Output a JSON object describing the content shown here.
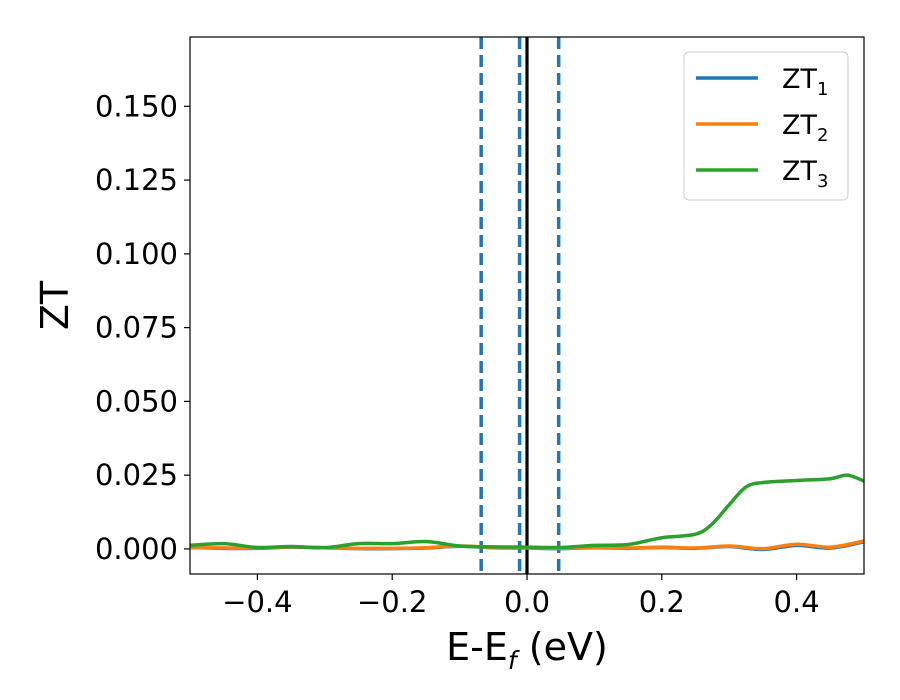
{
  "chart_data": {
    "type": "line",
    "title": "",
    "xlabel": {
      "main": "E-E",
      "sub": "f",
      "suffix": " (eV)"
    },
    "ylabel": "ZT",
    "xlim": [
      -0.5,
      0.5
    ],
    "ylim": [
      -0.0085,
      0.1735
    ],
    "xticks": [
      -0.4,
      -0.2,
      0.0,
      0.2,
      0.4
    ],
    "xtick_labels": [
      "−0.4",
      "−0.2",
      "0.0",
      "0.2",
      "0.4"
    ],
    "yticks": [
      0.0,
      0.025,
      0.05,
      0.075,
      0.1,
      0.125,
      0.15
    ],
    "ytick_labels": [
      "0.000",
      "0.025",
      "0.050",
      "0.075",
      "0.100",
      "0.125",
      "0.150"
    ],
    "grid": false,
    "legend_position": "top-right",
    "series": [
      {
        "name": "ZT",
        "name_sub": "1",
        "color": "#1f77b4",
        "x": [
          -0.5,
          -0.45,
          -0.4,
          -0.35,
          -0.3,
          -0.25,
          -0.2,
          -0.15,
          -0.1,
          -0.05,
          0.0,
          0.05,
          0.1,
          0.15,
          0.2,
          0.25,
          0.3,
          0.35,
          0.4,
          0.45,
          0.5
        ],
        "y": [
          0.0005,
          0.0002,
          0.0002,
          0.0006,
          0.0004,
          0.0001,
          0.0001,
          0.0003,
          0.0009,
          0.0004,
          0.0003,
          0.0001,
          0.0004,
          0.0002,
          0.0005,
          0.0002,
          0.0008,
          -0.0002,
          0.0012,
          0.0003,
          0.0024
        ]
      },
      {
        "name": "ZT",
        "name_sub": "2",
        "color": "#ff7f0e",
        "x": [
          -0.5,
          -0.45,
          -0.4,
          -0.35,
          -0.3,
          -0.25,
          -0.2,
          -0.15,
          -0.1,
          -0.05,
          0.0,
          0.05,
          0.1,
          0.15,
          0.2,
          0.25,
          0.3,
          0.35,
          0.4,
          0.45,
          0.5
        ],
        "y": [
          0.0005,
          0.0003,
          0.0003,
          0.0007,
          0.0005,
          0.0002,
          0.0002,
          0.0004,
          0.001,
          0.0005,
          0.0004,
          0.0002,
          0.0005,
          0.0003,
          0.0006,
          0.0003,
          0.001,
          0.0001,
          0.0016,
          0.0006,
          0.0027
        ]
      },
      {
        "name": "ZT",
        "name_sub": "3",
        "color": "#2ca02c",
        "x": [
          -0.5,
          -0.45,
          -0.4,
          -0.35,
          -0.3,
          -0.25,
          -0.2,
          -0.15,
          -0.1,
          -0.05,
          0.0,
          0.05,
          0.1,
          0.15,
          0.2,
          0.25,
          0.275,
          0.3,
          0.325,
          0.35,
          0.4,
          0.45,
          0.475,
          0.5
        ],
        "y": [
          0.0012,
          0.0018,
          0.0005,
          0.0008,
          0.0004,
          0.0018,
          0.0018,
          0.0025,
          0.001,
          0.0007,
          0.0006,
          0.0005,
          0.0012,
          0.0015,
          0.0038,
          0.005,
          0.0085,
          0.015,
          0.021,
          0.0225,
          0.0232,
          0.0238,
          0.025,
          0.023
        ]
      }
    ],
    "vlines": [
      {
        "x": -0.068,
        "color": "#1f77b4",
        "style": "dashed"
      },
      {
        "x": -0.011,
        "color": "#1f77b4",
        "style": "dashed"
      },
      {
        "x": 0.0,
        "color": "#000000",
        "style": "solid"
      },
      {
        "x": 0.047,
        "color": "#1f77b4",
        "style": "dashed"
      }
    ]
  }
}
